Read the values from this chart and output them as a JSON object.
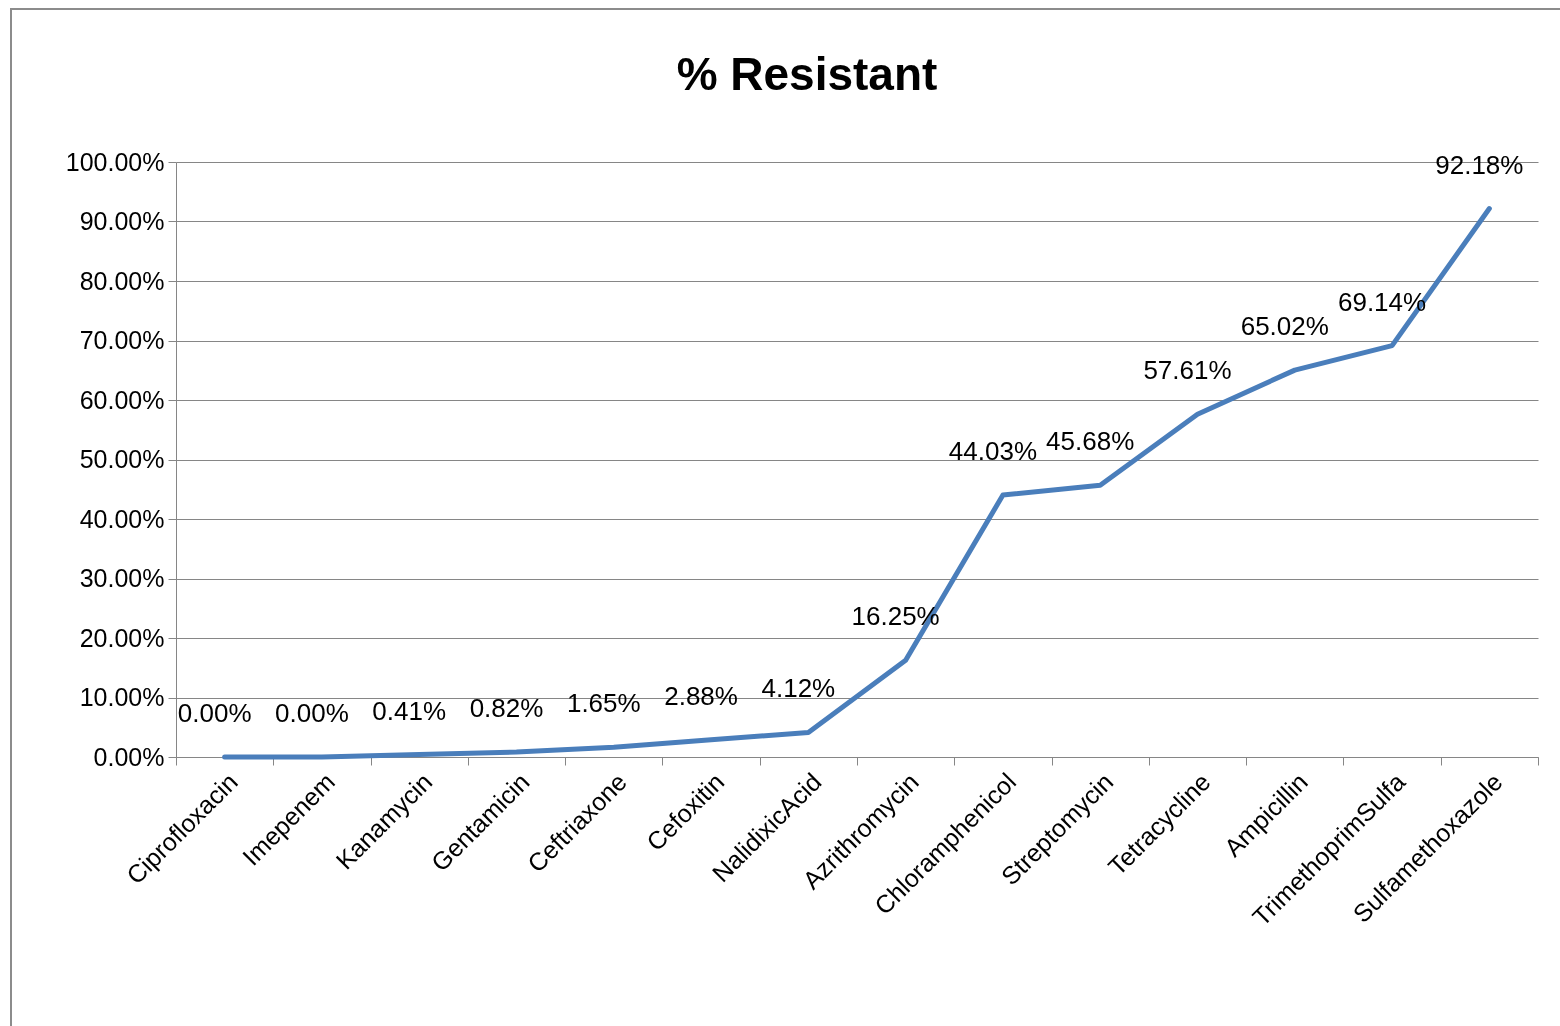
{
  "chart_data": {
    "type": "line",
    "title": "% Resistant",
    "categories": [
      "Ciprofloxacin",
      "Imepenem",
      "Kanamycin",
      "Gentamicin",
      "Ceftriaxone",
      "Cefoxitin",
      "NalidixicAcid",
      "Azrithromycin",
      "Chloramphenicol",
      "Streptomycin",
      "Tetracycline",
      "Ampicillin",
      "TrimethoprimSulfa",
      "Sulfamethoxazole"
    ],
    "series": [
      {
        "color": "#4a7ebb",
        "values": [
          0,
          0,
          0.41,
          0.82,
          1.65,
          2.88,
          4.12,
          16.25,
          44.03,
          45.68,
          57.61,
          65.02,
          69.14,
          92.18
        ],
        "value_labels": [
          "0.00%",
          "0.00%",
          "0.41%",
          "0.82%",
          "1.65%",
          "2.88%",
          "4.12%",
          "16.25%",
          "44.03%",
          "45.68%",
          "57.61%",
          "65.02%",
          "69.14%",
          "92.18%"
        ]
      }
    ],
    "ylim": [
      0,
      100
    ],
    "yticks": [
      {
        "value": 0,
        "label": "0.00%"
      },
      {
        "value": 10,
        "label": "10.00%"
      },
      {
        "value": 20,
        "label": "20.00%"
      },
      {
        "value": 30,
        "label": "30.00%"
      },
      {
        "value": 40,
        "label": "40.00%"
      },
      {
        "value": 50,
        "label": "50.00%"
      },
      {
        "value": 60,
        "label": "60.00%"
      },
      {
        "value": 70,
        "label": "70.00%"
      },
      {
        "value": 80,
        "label": "80.00%"
      },
      {
        "value": 90,
        "label": "90.00%"
      },
      {
        "value": 100,
        "label": "100.00%"
      }
    ],
    "grid": "y",
    "marker": "none",
    "line_style": "solid"
  }
}
